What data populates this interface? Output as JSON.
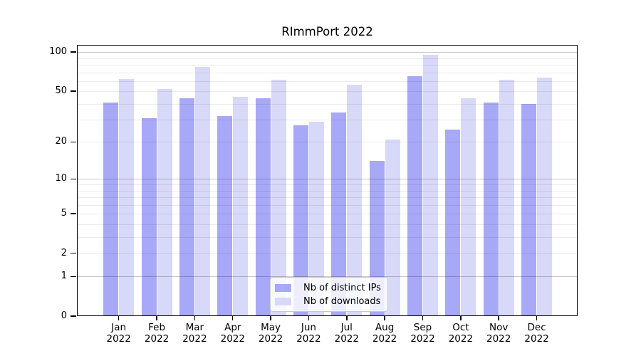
{
  "chart_data": {
    "type": "bar",
    "title": "RImmPort 2022",
    "xlabel": "",
    "ylabel": "",
    "y_scale": "log(1+x)",
    "ylim": [
      0,
      114
    ],
    "y_ticks": [
      0,
      1,
      2,
      5,
      10,
      20,
      50,
      100
    ],
    "grid": {
      "minor": [
        2,
        3,
        4,
        5,
        6,
        7,
        8,
        9,
        20,
        30,
        40,
        50,
        60,
        70,
        80,
        90
      ],
      "major": [
        1,
        10,
        100
      ]
    },
    "legend_position": "bottom-center",
    "categories": [
      "Jan 2022",
      "Feb 2022",
      "Mar 2022",
      "Apr 2022",
      "May 2022",
      "Jun 2022",
      "Jul 2022",
      "Aug 2022",
      "Sep 2022",
      "Oct 2022",
      "Nov 2022",
      "Dec 2022"
    ],
    "series": [
      {
        "name": "Nb of distinct IPs",
        "color": "#a8a8f8",
        "values": [
          41,
          31,
          44,
          32,
          44,
          27,
          34,
          14,
          65,
          25,
          41,
          40
        ]
      },
      {
        "name": "Nb of downloads",
        "color": "#d8d8f8",
        "values": [
          62,
          52,
          77,
          45,
          61,
          29,
          56,
          21,
          95,
          44,
          61,
          64
        ]
      }
    ]
  }
}
